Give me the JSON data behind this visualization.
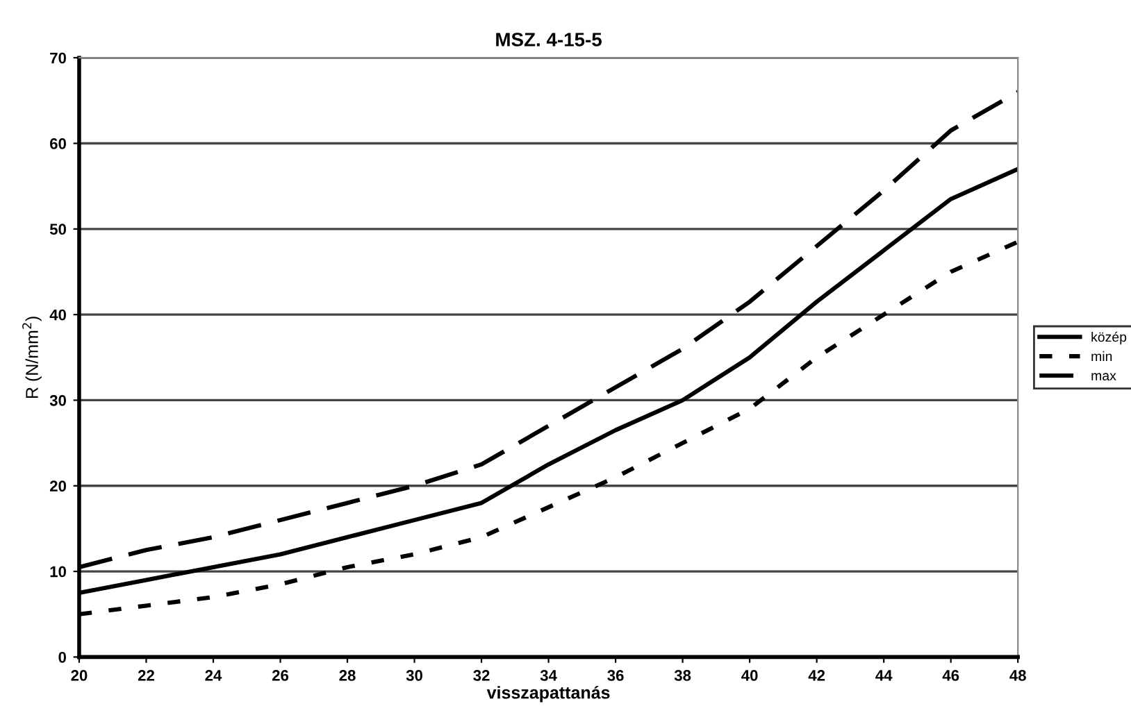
{
  "chart_data": {
    "type": "line",
    "title": "MSZ. 4-15-5",
    "xlabel": "visszapattanás",
    "ylabel": "R (N/mm$^{2}$)",
    "x": [
      20,
      22,
      24,
      26,
      28,
      30,
      32,
      34,
      36,
      38,
      40,
      42,
      44,
      46,
      48
    ],
    "series": [
      {
        "name": "közép",
        "color": "#000000",
        "line_style": "solid",
        "values": [
          7.5,
          9,
          10.5,
          12,
          14,
          16,
          18,
          22.5,
          26.5,
          30,
          35,
          41.5,
          47.5,
          53.5,
          57
        ]
      },
      {
        "name": "min",
        "color": "#000000",
        "line_style": "dotted",
        "values": [
          5,
          6,
          7,
          8.5,
          10.5,
          12,
          14,
          17.5,
          21,
          25,
          29,
          35,
          40,
          45,
          48.5
        ]
      },
      {
        "name": "max",
        "color": "#000000",
        "line_style": "dashed",
        "values": [
          10.5,
          12.5,
          14,
          16,
          18,
          20,
          22.5,
          27,
          31.5,
          36,
          41.5,
          48,
          54.5,
          61.5,
          66
        ]
      }
    ],
    "xlim": [
      20,
      48
    ],
    "xticks": [
      20,
      22,
      24,
      26,
      28,
      30,
      32,
      34,
      36,
      38,
      40,
      42,
      44,
      46,
      48
    ],
    "ylim": [
      0,
      70
    ],
    "yticks": [
      0,
      10,
      20,
      30,
      40,
      50,
      60,
      70
    ],
    "grid": "y",
    "legend": "right",
    "marker": "none"
  }
}
